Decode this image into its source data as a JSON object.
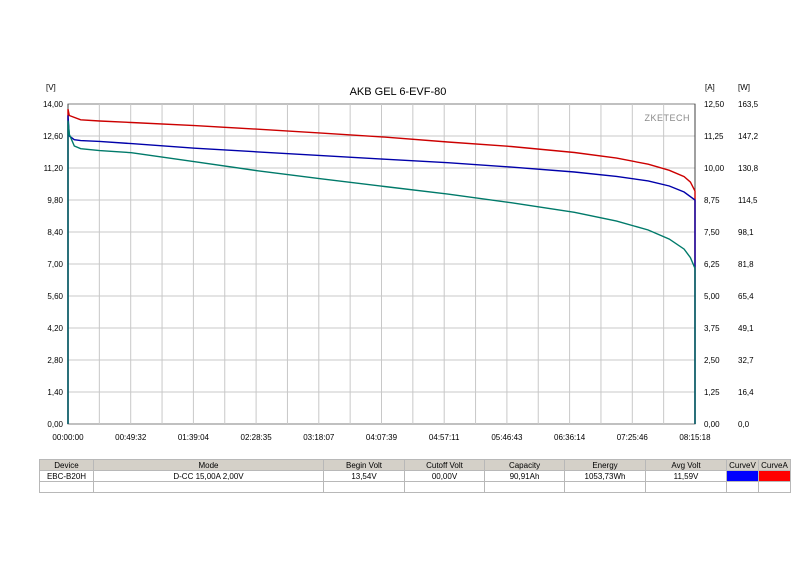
{
  "chart_data": {
    "type": "line",
    "title": "AKB GEL  6-EVF-80",
    "watermark": "ZKETECH",
    "x_ticks": [
      "00:00:00",
      "00:49:32",
      "01:39:04",
      "02:28:35",
      "03:18:07",
      "04:07:39",
      "04:57:11",
      "05:46:43",
      "06:36:14",
      "07:25:46",
      "08:15:18"
    ],
    "xlim": [
      0,
      29718
    ],
    "left_axis": {
      "unit": "[V]",
      "ylim": [
        0,
        14.0
      ],
      "ticks": [
        "0,00",
        "1,40",
        "2,80",
        "4,20",
        "5,60",
        "7,00",
        "8,40",
        "9,80",
        "11,20",
        "12,60",
        "14,00"
      ]
    },
    "right_axis_a": {
      "unit": "[A]",
      "ylim": [
        0,
        12.5
      ],
      "ticks": [
        "0,00",
        "1,25",
        "2,50",
        "3,75",
        "5,00",
        "6,25",
        "7,50",
        "8,75",
        "10,00",
        "11,25",
        "12,50"
      ]
    },
    "right_axis_w": {
      "unit": "[W]",
      "ylim": [
        0,
        163.5
      ],
      "ticks": [
        "0,0",
        "16,4",
        "32,7",
        "49,1",
        "65,4",
        "81,8",
        "98,1",
        "114,5",
        "130,8",
        "147,2",
        "163,5"
      ]
    },
    "grid": true,
    "series": [
      {
        "color": "#cc0000",
        "axis": "A",
        "x": [
          0,
          60,
          600,
          1500,
          3000,
          6000,
          9000,
          12000,
          15000,
          18000,
          21000,
          24000,
          26000,
          27500,
          28500,
          29200,
          29500,
          29718
        ],
        "y": [
          12.3,
          12.05,
          11.9,
          11.85,
          11.78,
          11.65,
          11.5,
          11.35,
          11.2,
          11.02,
          10.85,
          10.62,
          10.4,
          10.15,
          9.9,
          9.65,
          9.45,
          9.1
        ]
      },
      {
        "color": "#0000aa",
        "axis": "V",
        "x": [
          0,
          60,
          300,
          600,
          1500,
          3000,
          6000,
          9000,
          12000,
          15000,
          18000,
          21000,
          24000,
          26000,
          27500,
          28500,
          29200,
          29718
        ],
        "y": [
          13.5,
          12.6,
          12.45,
          12.4,
          12.35,
          12.25,
          12.05,
          11.9,
          11.75,
          11.6,
          11.45,
          11.25,
          11.02,
          10.82,
          10.62,
          10.4,
          10.15,
          9.8
        ]
      },
      {
        "color": "#007a6a",
        "axis": "W",
        "x": [
          0,
          60,
          300,
          600,
          1500,
          3000,
          6000,
          9000,
          12000,
          15000,
          18000,
          21000,
          24000,
          26000,
          27500,
          28500,
          29200,
          29500,
          29718
        ],
        "y": [
          155.0,
          148.0,
          142.0,
          140.5,
          139.5,
          138.5,
          134.0,
          129.5,
          125.5,
          121.5,
          117.5,
          113.0,
          108.0,
          103.5,
          99.0,
          94.5,
          89.5,
          85.0,
          79.5
        ]
      }
    ]
  },
  "results": {
    "headers": [
      "Device",
      "Mode",
      "Begin Volt",
      "Cutoff Volt",
      "Capacity",
      "Energy",
      "Avg Volt",
      "CurveV",
      "CurveA"
    ],
    "row": {
      "device": "EBC-B20H",
      "mode": "D-CC 15,00A  2,00V",
      "begin_volt": "13,54V",
      "cutoff_volt": "00,00V",
      "capacity": "90,91Ah",
      "energy": "1053,73Wh",
      "avg_volt": "11,59V",
      "curve_v_color": "#0000ff",
      "curve_a_color": "#ff0000"
    }
  }
}
